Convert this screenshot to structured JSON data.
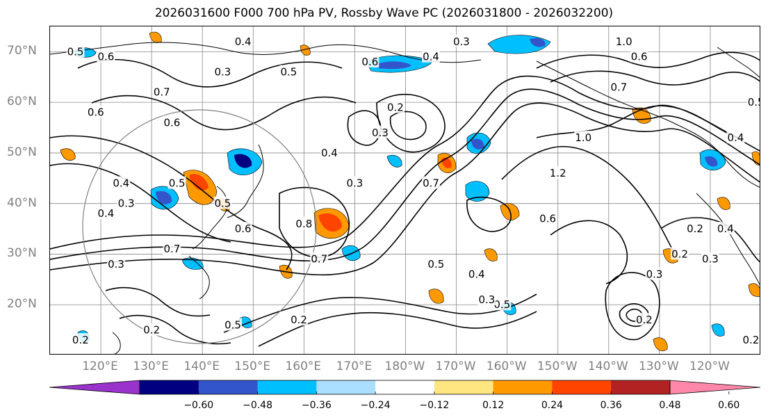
{
  "title": "2026031600 F000 700 hPa PV, Rossby Wave PC (2026031800 - 2026032200)",
  "map": {
    "lat_labels": [
      "70°N",
      "60°N",
      "50°N",
      "40°N",
      "30°N",
      "20°N"
    ],
    "lat_values": [
      70,
      60,
      50,
      40,
      30,
      20
    ],
    "lon_labels": [
      "120°E",
      "130°E",
      "140°E",
      "150°E",
      "160°E",
      "170°E",
      "180°W",
      "170°W",
      "160°W",
      "150°W",
      "140°W",
      "130°W",
      "120°W"
    ],
    "lon_values": [
      120,
      130,
      140,
      150,
      160,
      170,
      180,
      190,
      200,
      210,
      220,
      230,
      240
    ],
    "extent": {
      "lon_min": 110,
      "lon_max": 250,
      "lat_min": 10,
      "lat_max": 75
    },
    "contour_labels": [
      {
        "text": "0.4",
        "lon": 148,
        "lat": 72
      },
      {
        "text": "0.5",
        "lon": 115,
        "lat": 70
      },
      {
        "text": "0.6",
        "lon": 121,
        "lat": 69
      },
      {
        "text": "0.3",
        "lon": 144,
        "lat": 66
      },
      {
        "text": "0.5",
        "lon": 157,
        "lat": 66
      },
      {
        "text": "0.6",
        "lon": 173,
        "lat": 68
      },
      {
        "text": "0.4",
        "lon": 185,
        "lat": 69
      },
      {
        "text": "0.3",
        "lon": 191,
        "lat": 72
      },
      {
        "text": "0.7",
        "lon": 132,
        "lat": 62
      },
      {
        "text": "0.6",
        "lon": 119,
        "lat": 58
      },
      {
        "text": "0.6",
        "lon": 134,
        "lat": 56
      },
      {
        "text": "0.2",
        "lon": 178,
        "lat": 59
      },
      {
        "text": "0.3",
        "lon": 175,
        "lat": 54
      },
      {
        "text": "1.0",
        "lon": 223,
        "lat": 72
      },
      {
        "text": "0.6",
        "lon": 226,
        "lat": 69
      },
      {
        "text": "0.7",
        "lon": 222,
        "lat": 63
      },
      {
        "text": "1.0",
        "lon": 215,
        "lat": 53
      },
      {
        "text": "0.5",
        "lon": 249,
        "lat": 60
      },
      {
        "text": "0.4",
        "lon": 245,
        "lat": 53
      },
      {
        "text": "1.2",
        "lon": 210,
        "lat": 46
      },
      {
        "text": "0.6",
        "lon": 208,
        "lat": 37
      },
      {
        "text": "0.4",
        "lon": 165,
        "lat": 50
      },
      {
        "text": "0.7",
        "lon": 185,
        "lat": 44
      },
      {
        "text": "0.3",
        "lon": 170,
        "lat": 44
      },
      {
        "text": "0.5",
        "lon": 135,
        "lat": 44
      },
      {
        "text": "0.4",
        "lon": 124,
        "lat": 44
      },
      {
        "text": "0.3",
        "lon": 125,
        "lat": 40
      },
      {
        "text": "0.4",
        "lon": 121,
        "lat": 38
      },
      {
        "text": "0.6",
        "lon": 148,
        "lat": 35
      },
      {
        "text": "0.8",
        "lon": 160,
        "lat": 36
      },
      {
        "text": "0.7",
        "lon": 163,
        "lat": 29
      },
      {
        "text": "0.5",
        "lon": 186,
        "lat": 28
      },
      {
        "text": "0.4",
        "lon": 194,
        "lat": 26
      },
      {
        "text": "0.5",
        "lon": 199,
        "lat": 20
      },
      {
        "text": "0.3",
        "lon": 196,
        "lat": 21
      },
      {
        "text": "0.3",
        "lon": 229,
        "lat": 26
      },
      {
        "text": "0.3",
        "lon": 123,
        "lat": 28
      },
      {
        "text": "0.2",
        "lon": 234,
        "lat": 30
      },
      {
        "text": "0.3",
        "lon": 240,
        "lat": 29
      },
      {
        "text": "0.2",
        "lon": 237,
        "lat": 35
      },
      {
        "text": "0.4",
        "lon": 243,
        "lat": 35
      },
      {
        "text": "0.2",
        "lon": 130,
        "lat": 15
      },
      {
        "text": "0.2",
        "lon": 116,
        "lat": 13
      },
      {
        "text": "0.5",
        "lon": 146,
        "lat": 16
      },
      {
        "text": "0.2",
        "lon": 159,
        "lat": 17
      },
      {
        "text": "0.2",
        "lon": 248,
        "lat": 13
      },
      {
        "text": "0.2",
        "lon": 227,
        "lat": 17
      },
      {
        "text": "0.5",
        "lon": 144,
        "lat": 40
      },
      {
        "text": "0.7",
        "lon": 134,
        "lat": 31
      }
    ]
  },
  "colorbar": {
    "colors": [
      "#9933cc",
      "#000080",
      "#3355cc",
      "#00bfff",
      "#aadfff",
      "#ffffff",
      "#ffe680",
      "#ff9900",
      "#ff4400",
      "#b22222",
      "#ff88aa"
    ],
    "ticks": [
      "−0.60",
      "−0.48",
      "−0.36",
      "−0.24",
      "−0.12",
      "0.12",
      "0.24",
      "0.36",
      "0.48",
      "0.60"
    ]
  }
}
